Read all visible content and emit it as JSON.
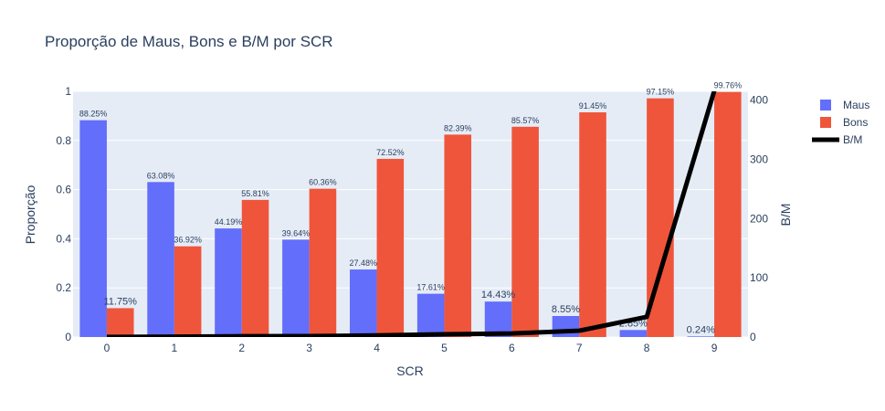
{
  "chart_data": {
    "type": "bar",
    "title": "Proporção de Maus, Bons e B/M por SCR",
    "xlabel": "SCR",
    "ylabel": "Proporção",
    "y2label": "B/M",
    "categories": [
      "0",
      "1",
      "2",
      "3",
      "4",
      "5",
      "6",
      "7",
      "8",
      "9"
    ],
    "ylim": [
      0,
      1
    ],
    "y2lim": [
      0,
      415
    ],
    "yticks": [
      "0",
      "0.2",
      "0.4",
      "0.6",
      "0.8",
      "1"
    ],
    "y2ticks": [
      "0",
      "100",
      "200",
      "300",
      "400"
    ],
    "grid": true,
    "legend_position": "top-right",
    "series": [
      {
        "name": "Maus",
        "kind": "bar",
        "color": "#636efa",
        "values": [
          0.8825,
          0.6308,
          0.4419,
          0.3964,
          0.2748,
          0.1761,
          0.1443,
          0.0855,
          0.0285,
          0.0024
        ],
        "labels": [
          "88.25%",
          "63.08%",
          "44.19%",
          "39.64%",
          "27.48%",
          "17.61%",
          "14.43%",
          "8.55%",
          "2.85%",
          "0.24%"
        ]
      },
      {
        "name": "Bons",
        "kind": "bar",
        "color": "#ef553b",
        "values": [
          0.1175,
          0.3692,
          0.5581,
          0.6036,
          0.7252,
          0.8239,
          0.8557,
          0.9145,
          0.9715,
          0.9976
        ],
        "labels": [
          "11.75%",
          "36.92%",
          "55.81%",
          "60.36%",
          "72.52%",
          "82.39%",
          "85.57%",
          "91.45%",
          "97.15%",
          "99.76%"
        ]
      },
      {
        "name": "B/M",
        "kind": "line",
        "axis": "y2",
        "color": "#000000",
        "values": [
          0.13,
          0.59,
          1.26,
          1.52,
          2.64,
          4.68,
          5.93,
          10.7,
          34.1,
          415.7
        ]
      }
    ]
  }
}
